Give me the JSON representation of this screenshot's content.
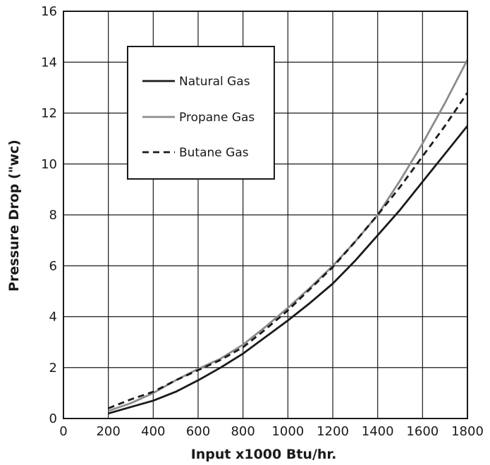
{
  "chart_data": {
    "type": "line",
    "title": "",
    "xlabel": "Input x1000 Btu/hr.",
    "ylabel": "Pressure Drop (\"wc)",
    "xlim": [
      0,
      1800
    ],
    "ylim": [
      0,
      16
    ],
    "xticks": [
      0,
      200,
      400,
      600,
      800,
      1000,
      1200,
      1400,
      1600,
      1800
    ],
    "yticks": [
      0,
      2,
      4,
      6,
      8,
      10,
      12,
      14,
      16
    ],
    "grid": true,
    "legend_position": "top-left",
    "series": [
      {
        "name": "Natural Gas",
        "color": "#1a1a1a",
        "dash": "solid",
        "x": [
          200,
          300,
          400,
          500,
          600,
          700,
          800,
          900,
          1000,
          1100,
          1200,
          1300,
          1400,
          1500,
          1600,
          1700,
          1800
        ],
        "y": [
          0.2,
          0.45,
          0.7,
          1.05,
          1.5,
          2.0,
          2.55,
          3.2,
          3.85,
          4.55,
          5.3,
          6.2,
          7.2,
          8.2,
          9.3,
          10.4,
          11.5
        ]
      },
      {
        "name": "Propane Gas",
        "color": "#8c8c8c",
        "dash": "solid",
        "x": [
          200,
          300,
          400,
          500,
          600,
          700,
          800,
          900,
          1000,
          1100,
          1200,
          1300,
          1400,
          1500,
          1600,
          1700,
          1800
        ],
        "y": [
          0.3,
          0.6,
          1.0,
          1.5,
          1.95,
          2.35,
          2.9,
          3.6,
          4.35,
          5.15,
          6.0,
          6.95,
          8.0,
          9.35,
          10.8,
          12.4,
          14.1
        ]
      },
      {
        "name": "Butane Gas",
        "color": "#1a1a1a",
        "dash": "dashed",
        "x": [
          200,
          300,
          400,
          500,
          600,
          700,
          800,
          900,
          1000,
          1100,
          1200,
          1300,
          1400,
          1500,
          1600,
          1700,
          1800
        ],
        "y": [
          0.4,
          0.75,
          1.05,
          1.5,
          1.9,
          2.3,
          2.8,
          3.5,
          4.25,
          5.1,
          5.95,
          6.95,
          8.0,
          9.1,
          10.3,
          11.5,
          12.8
        ]
      }
    ]
  }
}
